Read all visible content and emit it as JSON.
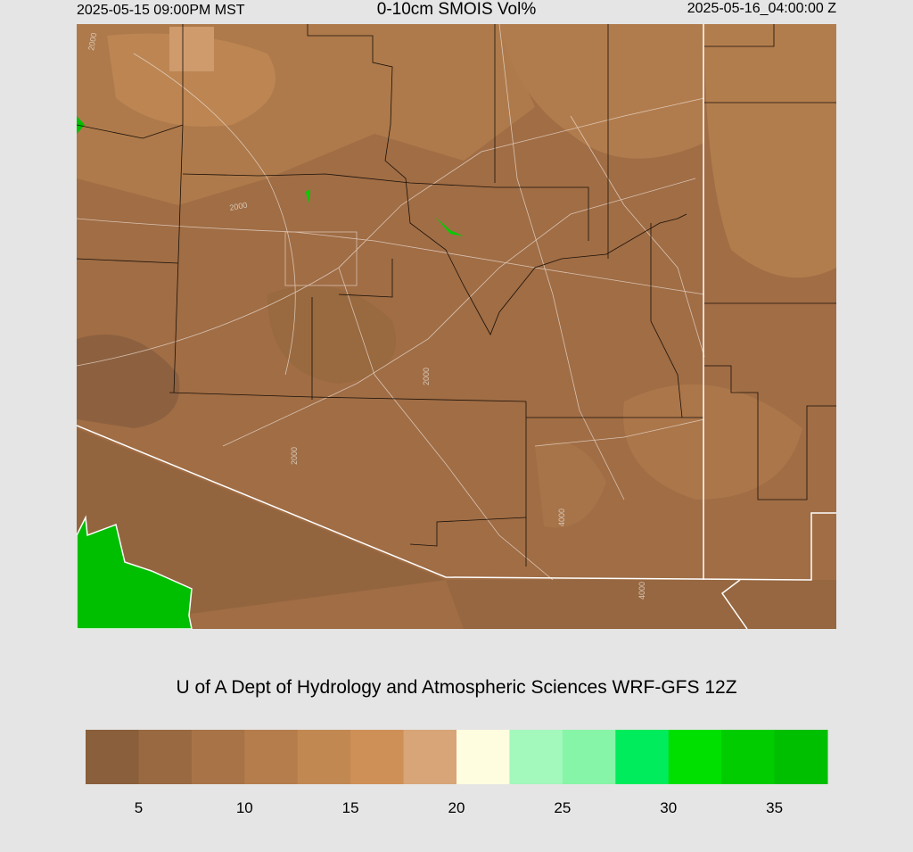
{
  "header": {
    "valid_local": "2025-05-15 09:00PM MST",
    "title": "0-10cm SMOIS Vol%",
    "valid_utc": "2025-05-16_04:00:00 Z"
  },
  "map": {
    "contour_labels": [
      "2000",
      "2000",
      "2000",
      "2000",
      "4000",
      "4000"
    ]
  },
  "credit": "U of A Dept of Hydrology and Atmospheric Sciences WRF-GFS 12Z",
  "colorbar": {
    "colors": [
      "#8a5f3b",
      "#996942",
      "#a87347",
      "#b47d4b",
      "#c18852",
      "#ce9057",
      "#d8a578",
      "#fffde0",
      "#a3f8bb",
      "#87f5a7",
      "#00ec5c",
      "#00e000",
      "#00cc00",
      "#00be00"
    ],
    "lim": [
      2.5,
      37.5
    ],
    "ticks": [
      5,
      10,
      15,
      20,
      25,
      30,
      35
    ]
  }
}
